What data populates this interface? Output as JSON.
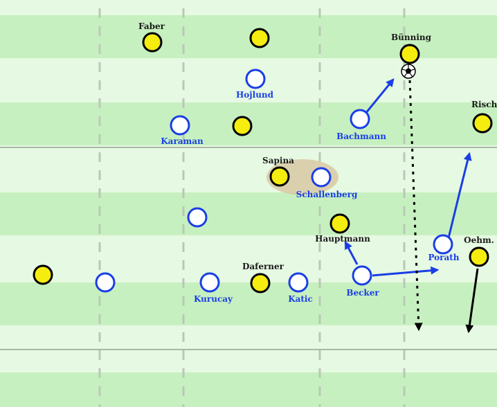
{
  "colors": {
    "stripe_light": "#e6f9e2",
    "stripe_dark": "#c7f0c0",
    "line": "#a8b8a6",
    "guide": "#b9c8b6",
    "yellow_team": "#f5ec10",
    "blue_team": "#1a3ee6",
    "dark_label": "#1a1a1a",
    "highlight": "#d8c9a5"
  },
  "players": [
    {
      "id": "faber",
      "name": "Faber",
      "team": "yellow"
    },
    {
      "id": "yellow-top-center",
      "name": "",
      "team": "yellow"
    },
    {
      "id": "bunning",
      "name": "Bünning",
      "team": "yellow"
    },
    {
      "id": "yellow-left-mid",
      "name": "",
      "team": "yellow"
    },
    {
      "id": "risch",
      "name": "Risch",
      "team": "yellow"
    },
    {
      "id": "sapina",
      "name": "Sapina",
      "team": "yellow"
    },
    {
      "id": "hauptmann",
      "name": "Hauptmann",
      "team": "yellow"
    },
    {
      "id": "oehm",
      "name": "Oehm.",
      "team": "yellow"
    },
    {
      "id": "daferner",
      "name": "Daferner",
      "team": "yellow"
    },
    {
      "id": "yellow-far-left",
      "name": "",
      "team": "yellow"
    },
    {
      "id": "hojlund",
      "name": "Hojlund",
      "team": "blue"
    },
    {
      "id": "karaman",
      "name": "Karaman",
      "team": "blue"
    },
    {
      "id": "bachmann",
      "name": "Bachmann",
      "team": "blue"
    },
    {
      "id": "schallenberg",
      "name": "Schallenberg",
      "team": "blue"
    },
    {
      "id": "blue-mid-left",
      "name": "",
      "team": "blue"
    },
    {
      "id": "porath",
      "name": "Porath",
      "team": "blue"
    },
    {
      "id": "becker",
      "name": "Becker",
      "team": "blue"
    },
    {
      "id": "katic",
      "name": "Katic",
      "team": "blue"
    },
    {
      "id": "kurucay",
      "name": "Kurucay",
      "team": "blue"
    },
    {
      "id": "blue-far-left",
      "name": "",
      "team": "blue"
    }
  ],
  "arrows": [
    {
      "id": "bachmann-run",
      "style": "solid",
      "color": "blue"
    },
    {
      "id": "risch-run",
      "style": "solid",
      "color": "blue"
    },
    {
      "id": "becker-to-hauptmann",
      "style": "solid",
      "color": "blue"
    },
    {
      "id": "becker-to-porath",
      "style": "solid",
      "color": "blue"
    },
    {
      "id": "oehm-run",
      "style": "solid",
      "color": "black"
    },
    {
      "id": "ball-pass",
      "style": "dotted",
      "color": "black"
    }
  ],
  "ball": {
    "icon": "football-icon"
  }
}
